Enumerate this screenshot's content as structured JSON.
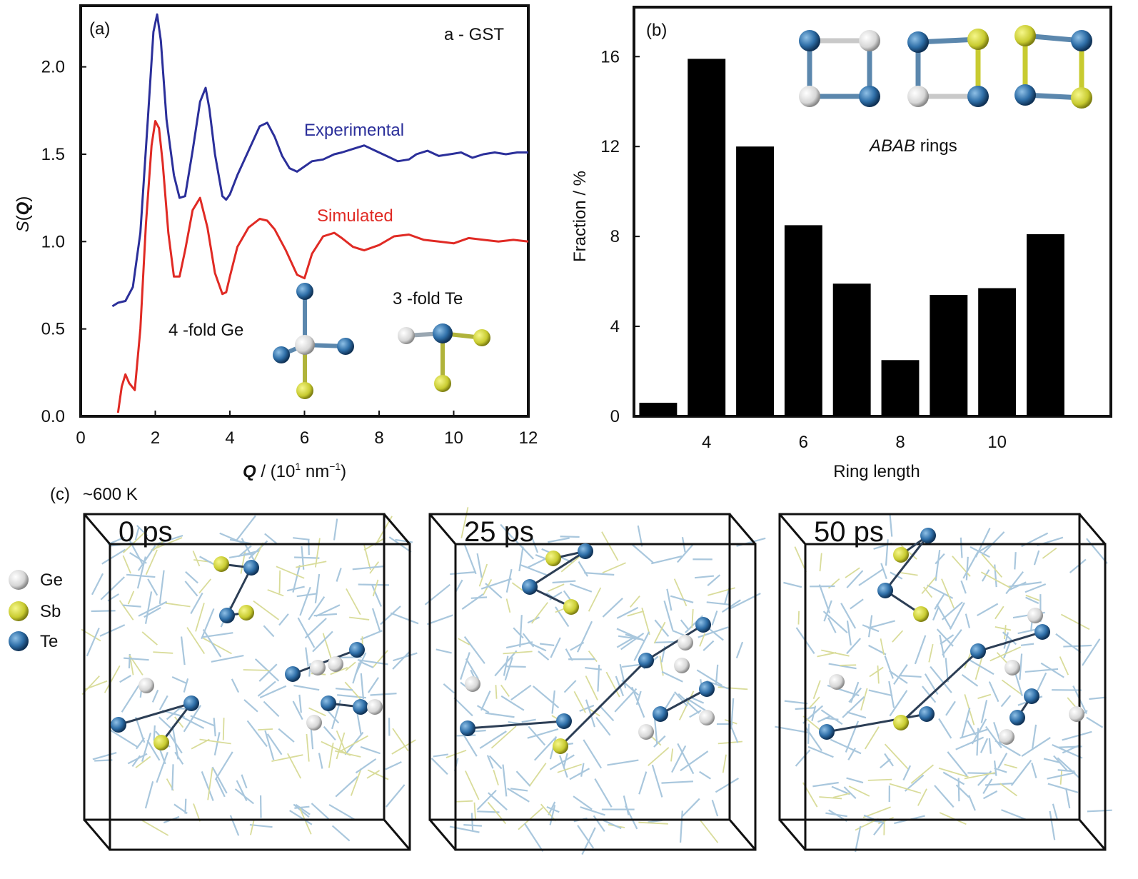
{
  "chart_data": [
    {
      "panel": "(a)",
      "type": "line",
      "annotation": "a - GST",
      "xlabel": "Q",
      "xlabel_unit": " / (10",
      "xlabel_exp": "1",
      "xlabel_unit2": " nm",
      "xlabel_exp2": "−1",
      "xlabel_close": ")",
      "ylabel": "S(Q)",
      "ylabel_s": "S",
      "ylabel_paren_open": "(",
      "ylabel_q": "Q",
      "ylabel_paren_close": ")",
      "xlim": [
        0,
        12
      ],
      "ylim": [
        0,
        2.35
      ],
      "xticks": [
        "0",
        "2",
        "4",
        "6",
        "8",
        "10",
        "12"
      ],
      "yticks": [
        "0.0",
        "0.5",
        "1.0",
        "1.5",
        "2.0"
      ],
      "series": [
        {
          "name": "Experimental",
          "color": "#2b2f9a",
          "x": [
            0.85,
            1.0,
            1.2,
            1.4,
            1.6,
            1.8,
            1.95,
            2.05,
            2.15,
            2.3,
            2.5,
            2.65,
            2.8,
            3.0,
            3.2,
            3.35,
            3.45,
            3.6,
            3.8,
            3.9,
            4.0,
            4.2,
            4.5,
            4.8,
            5.0,
            5.2,
            5.4,
            5.6,
            5.8,
            6.0,
            6.2,
            6.5,
            6.8,
            7.0,
            7.3,
            7.6,
            7.9,
            8.2,
            8.5,
            8.8,
            9.0,
            9.3,
            9.6,
            9.9,
            10.2,
            10.5,
            10.8,
            11.1,
            11.4,
            11.7,
            12.0
          ],
          "y": [
            0.63,
            0.65,
            0.66,
            0.74,
            1.05,
            1.7,
            2.2,
            2.3,
            2.15,
            1.7,
            1.38,
            1.25,
            1.26,
            1.52,
            1.8,
            1.88,
            1.76,
            1.5,
            1.26,
            1.24,
            1.27,
            1.38,
            1.52,
            1.66,
            1.68,
            1.6,
            1.49,
            1.42,
            1.4,
            1.43,
            1.46,
            1.47,
            1.5,
            1.51,
            1.53,
            1.55,
            1.52,
            1.49,
            1.46,
            1.47,
            1.5,
            1.52,
            1.49,
            1.5,
            1.51,
            1.48,
            1.5,
            1.51,
            1.5,
            1.51,
            1.51
          ]
        },
        {
          "name": "Simulated",
          "color": "#e02a24",
          "x": [
            1.0,
            1.1,
            1.2,
            1.3,
            1.45,
            1.6,
            1.75,
            1.9,
            2.0,
            2.1,
            2.2,
            2.35,
            2.5,
            2.65,
            2.8,
            3.0,
            3.2,
            3.4,
            3.6,
            3.8,
            3.9,
            4.0,
            4.2,
            4.5,
            4.8,
            5.0,
            5.2,
            5.5,
            5.8,
            6.0,
            6.2,
            6.5,
            6.8,
            7.0,
            7.3,
            7.6,
            8.0,
            8.4,
            8.8,
            9.2,
            9.6,
            10.0,
            10.4,
            10.8,
            11.2,
            11.6,
            12.0
          ],
          "y": [
            0.02,
            0.17,
            0.24,
            0.19,
            0.15,
            0.5,
            1.1,
            1.55,
            1.69,
            1.65,
            1.45,
            1.05,
            0.8,
            0.8,
            0.95,
            1.18,
            1.25,
            1.08,
            0.82,
            0.7,
            0.71,
            0.8,
            0.97,
            1.08,
            1.13,
            1.12,
            1.07,
            0.95,
            0.81,
            0.79,
            0.93,
            1.03,
            1.05,
            1.02,
            0.97,
            0.95,
            0.98,
            1.03,
            1.04,
            1.01,
            1.0,
            0.99,
            1.02,
            1.01,
            1.0,
            1.01,
            1.0
          ]
        }
      ],
      "inset_labels": {
        "ge": "4 -fold Ge",
        "te": "3 -fold Te"
      }
    },
    {
      "panel": "(b)",
      "type": "bar",
      "xlabel": "Ring length",
      "ylabel": "Fraction / %",
      "annotation_italic": "ABAB",
      "annotation_rest": " rings",
      "categories": [
        3,
        4,
        5,
        6,
        7,
        8,
        9,
        10,
        11
      ],
      "values": [
        0.6,
        15.9,
        12.0,
        8.5,
        5.9,
        2.5,
        5.4,
        5.7,
        8.1
      ],
      "xticks": [
        "4",
        "6",
        "8",
        "10"
      ],
      "yticks": [
        "0",
        "4",
        "8",
        "12",
        "16"
      ],
      "ylim": [
        0,
        18.2
      ],
      "bar_color": "#000000"
    }
  ],
  "panel_c": {
    "label": "(c)",
    "temperature": "~600 K",
    "snapshots": [
      "0 ps",
      "25 ps",
      "50 ps"
    ],
    "legend": [
      {
        "name": "Ge",
        "color": "#e8e8e8"
      },
      {
        "name": "Sb",
        "color": "#c8cb30"
      },
      {
        "name": "Te",
        "color": "#2f6fa8"
      }
    ]
  }
}
